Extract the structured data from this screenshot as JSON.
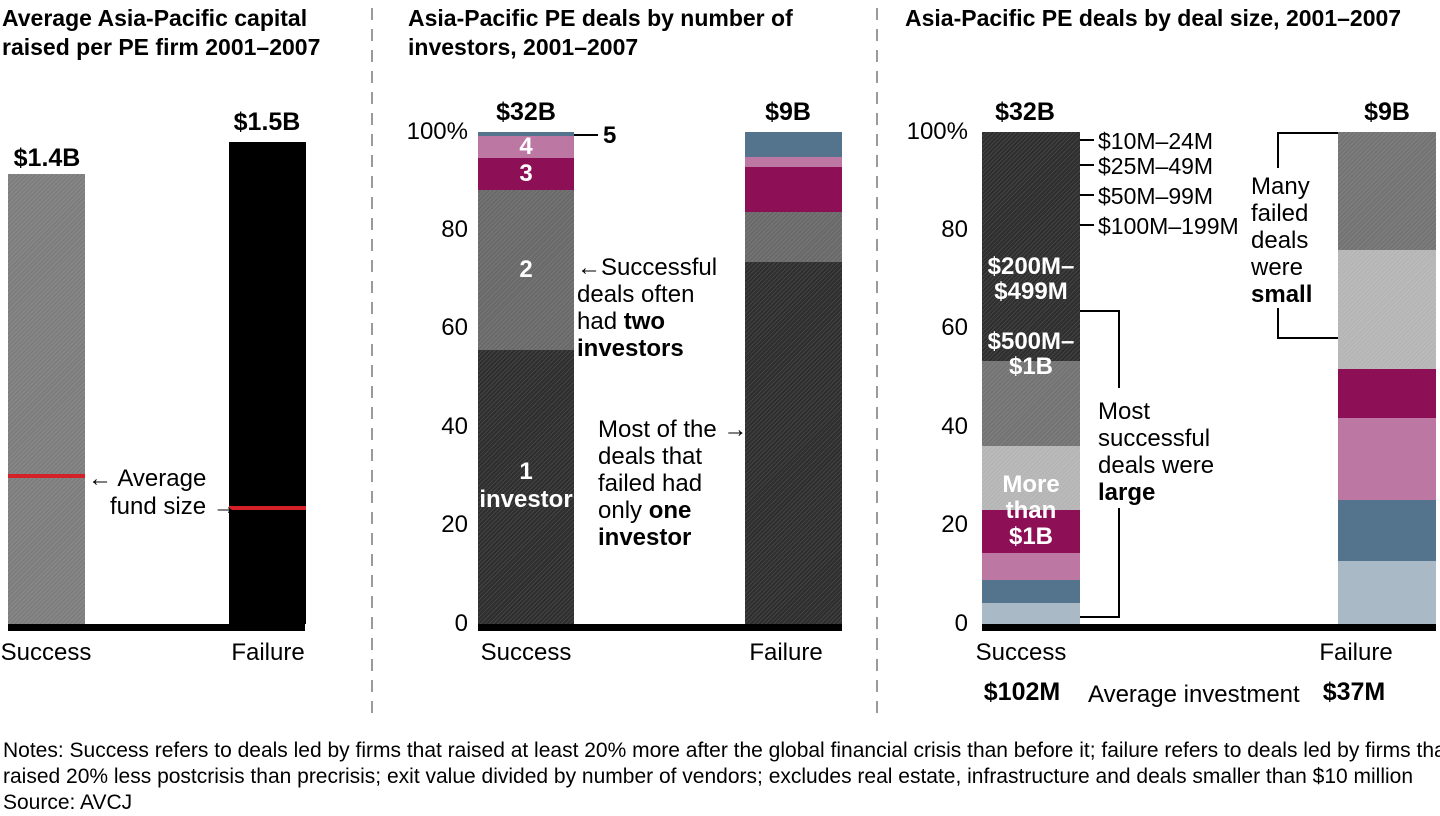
{
  "figure": {
    "notes_line1": "Notes: Success refers to deals led by firms that raised at least 20% more after the global financial crisis than before it; failure refers to deals led by firms that",
    "notes_line2": "raised 20% less postcrisis than precrisis; exit value divided by number of vendors; excludes real estate, infrastructure and deals smaller than $10 million",
    "source": "Source: AVCJ"
  },
  "chart_data": [
    {
      "type": "bar",
      "title": "Average Asia-Pacific capital raised per PE firm 2001–2007",
      "categories": [
        "Success",
        "Failure"
      ],
      "values": [
        1.4,
        1.5
      ],
      "value_labels": [
        "$1.4B",
        "$1.5B"
      ],
      "unit": "$B",
      "ylim": [
        0,
        1.55
      ],
      "grid": false,
      "bar_colors": [
        "#7d7d7d",
        "#000000"
      ],
      "average_fund_size": {
        "label_line1": "← Average",
        "label_line2": "fund size →",
        "values": [
          0.46,
          0.36
        ],
        "line_color": "#d42127"
      }
    },
    {
      "type": "stacked-bar-100",
      "title": "Asia-Pacific PE deals by number of investors, 2001–2007",
      "categories": [
        "Success",
        "Failure"
      ],
      "totals": [
        "$32B",
        "$9B"
      ],
      "axis_ticks": [
        "100%",
        "80",
        "60",
        "40",
        "20",
        "0"
      ],
      "segments": [
        "1 investor",
        "2",
        "3",
        "4",
        "5"
      ],
      "segment_colors": [
        "#2e2e2e",
        "#696969",
        "#8d1056",
        "#bd77a3",
        "#54738c"
      ],
      "series": [
        {
          "name": "Success",
          "values": [
            55.7,
            32.5,
            6.5,
            4.5,
            0.8
          ]
        },
        {
          "name": "Failure",
          "values": [
            73.6,
            10.0,
            9.3,
            2.0,
            5.1
          ]
        }
      ],
      "bar_labels": {
        "seg1_line1": "1",
        "seg1_line2": "investor",
        "seg2": "2",
        "seg3": "3",
        "seg4": "4",
        "seg5": "5"
      },
      "callout_success": {
        "l1": "←Successful",
        "l2": "deals often",
        "l3a": "had ",
        "l3b": "two",
        "l4": "investors"
      },
      "callout_failure": {
        "l1": "Most of the →",
        "l2": "deals that",
        "l3": "failed had",
        "l4a": "only ",
        "l4b": "one",
        "l5": "investor"
      }
    },
    {
      "type": "stacked-bar-100",
      "title": "Asia-Pacific PE deals by deal size, 2001–2007",
      "categories": [
        "Success",
        "Failure"
      ],
      "totals": [
        "$32B",
        "$9B"
      ],
      "axis_ticks": [
        "100%",
        "80",
        "60",
        "40",
        "20",
        "0"
      ],
      "segments": [
        "$10M–24M",
        "$25M–49M",
        "$50M–99M",
        "$100M–199M",
        "$200M–$499M",
        "$500M–$1B",
        "More than $1B"
      ],
      "segment_colors": [
        "#a9b9c6",
        "#54738c",
        "#bd77a3",
        "#8d1056",
        "#b5b5b5",
        "#737373",
        "#2e2e2e"
      ],
      "series": [
        {
          "name": "Success",
          "values": [
            4.3,
            4.6,
            5.6,
            8.7,
            13.0,
            17.3,
            46.5
          ]
        },
        {
          "name": "Failure",
          "values": [
            12.7,
            12.4,
            16.7,
            10.0,
            24.2,
            24.0,
            0.0
          ]
        }
      ],
      "side_labels": [
        "$10M–24M",
        "$25M–49M",
        "$50M–99M",
        "$100M–199M"
      ],
      "inside_labels": {
        "a1": "$200M–",
        "a2": "$499M",
        "b1": "$500M–",
        "b2": "$1B",
        "c1": "More",
        "c2": "than",
        "c3": "$1B"
      },
      "callout_small": {
        "l1": "Many",
        "l2": "failed",
        "l3": "deals",
        "l4": "were",
        "l5": "small"
      },
      "callout_large": {
        "l1": "Most",
        "l2": "successful",
        "l3": "deals were",
        "l4": "large"
      },
      "average_investment": {
        "success": "$102M",
        "label": "Average investment",
        "failure": "$37M"
      }
    }
  ]
}
